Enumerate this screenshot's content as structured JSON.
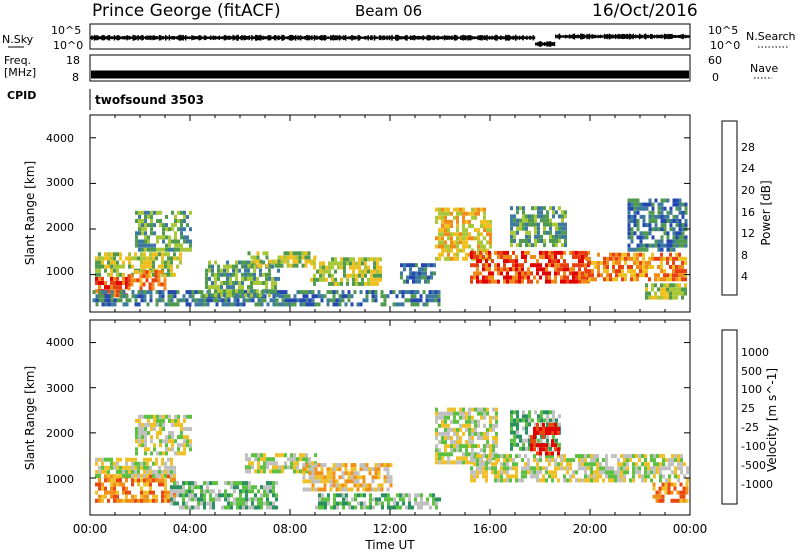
{
  "header": {
    "title": "Prince George (fitACF)",
    "beam": "Beam 06",
    "date": "16/Oct/2016"
  },
  "nsky_panel": {
    "left_label": "N.Sky",
    "right_label": "N.Search",
    "left_ticks": [
      "10^5",
      "10^0"
    ],
    "right_ticks": [
      "10^5",
      "10^0"
    ]
  },
  "freq_panel": {
    "left_label_line1": "Freq.",
    "left_label_line2": "[MHz]",
    "left_ticks": [
      "18",
      "8"
    ],
    "right_label": "Nave",
    "right_ticks": [
      "60",
      "0"
    ]
  },
  "cpid_panel": {
    "label": "CPID",
    "value": "twofsound 3503"
  },
  "x_axis": {
    "label": "Time UT",
    "ticks": [
      "00:00",
      "04:00",
      "08:00",
      "12:00",
      "16:00",
      "20:00",
      "00:00"
    ]
  },
  "power_panel": {
    "ylabel": "Slant Range [km]",
    "yticks": [
      "1000",
      "2000",
      "3000",
      "4000"
    ],
    "colorbar_label": "Power [dB]",
    "colorbar_ticks": [
      "4",
      "8",
      "12",
      "16",
      "20",
      "24",
      "28"
    ],
    "colorbar_colors": [
      "#1010e8",
      "#2448b0",
      "#3e7aa0",
      "#4f9a4f",
      "#a8c838",
      "#f0c020",
      "#f08a18",
      "#e84010",
      "#e00000"
    ]
  },
  "velocity_panel": {
    "ylabel": "Slant Range [km]",
    "yticks": [
      "1000",
      "2000",
      "3000",
      "4000"
    ],
    "colorbar_label": "Velocity [m s^-1]",
    "colorbar_ticks": [
      "1000",
      "500",
      "100",
      "25",
      "-25",
      "-100",
      "-500",
      "-1000"
    ],
    "colorbar_colors": [
      "#1030d0",
      "#2470c0",
      "#2a9060",
      "#5cc040",
      "#c0c0c0",
      "#f0c028",
      "#f09018",
      "#e84810",
      "#e00000"
    ]
  },
  "chart_data": {
    "type": "heatmap",
    "x_range_hours": [
      0,
      24
    ],
    "y_range_km": [
      180,
      4500
    ],
    "power_bands": [
      {
        "t0": 0.2,
        "t1": 1.6,
        "r0": 500,
        "r1": 900,
        "level": 7
      },
      {
        "t0": 0.2,
        "t1": 3.6,
        "r0": 950,
        "r1": 1450,
        "level": 4
      },
      {
        "t0": 1.5,
        "t1": 3.0,
        "r0": 650,
        "r1": 1100,
        "level": 6
      },
      {
        "t0": 1.8,
        "t1": 4.0,
        "r0": 1500,
        "r1": 2400,
        "level": 3
      },
      {
        "t0": 0.1,
        "t1": 14.0,
        "r0": 300,
        "r1": 600,
        "level": 2
      },
      {
        "t0": 4.6,
        "t1": 7.6,
        "r0": 500,
        "r1": 1300,
        "level": 3
      },
      {
        "t0": 6.3,
        "t1": 9.0,
        "r0": 1150,
        "r1": 1500,
        "level": 4
      },
      {
        "t0": 8.8,
        "t1": 11.6,
        "r0": 750,
        "r1": 1300,
        "level": 4
      },
      {
        "t0": 12.4,
        "t1": 13.8,
        "r0": 800,
        "r1": 1200,
        "level": 2
      },
      {
        "t0": 13.8,
        "t1": 16.0,
        "r0": 1300,
        "r1": 2400,
        "level": 5
      },
      {
        "t0": 15.2,
        "t1": 20.0,
        "r0": 800,
        "r1": 1500,
        "level": 7
      },
      {
        "t0": 16.8,
        "t1": 19.0,
        "r0": 1600,
        "r1": 2500,
        "level": 3
      },
      {
        "t0": 19.8,
        "t1": 24.0,
        "r0": 850,
        "r1": 1400,
        "level": 6
      },
      {
        "t0": 22.2,
        "t1": 24.0,
        "r0": 450,
        "r1": 800,
        "level": 4
      },
      {
        "t0": 21.5,
        "t1": 24.0,
        "r0": 1500,
        "r1": 2600,
        "level": 2
      }
    ],
    "velocity_bands": [
      {
        "t0": 0.2,
        "t1": 3.4,
        "r0": 450,
        "r1": 1000,
        "level": 6
      },
      {
        "t0": 0.2,
        "t1": 3.4,
        "r0": 1000,
        "r1": 1450,
        "level": 4
      },
      {
        "t0": 1.8,
        "t1": 4.0,
        "r0": 1500,
        "r1": 2400,
        "level": 4
      },
      {
        "t0": 3.2,
        "t1": 7.5,
        "r0": 300,
        "r1": 900,
        "level": 3
      },
      {
        "t0": 6.2,
        "t1": 9.0,
        "r0": 1100,
        "r1": 1500,
        "level": 4
      },
      {
        "t0": 8.5,
        "t1": 12.0,
        "r0": 700,
        "r1": 1300,
        "level": 5
      },
      {
        "t0": 9.0,
        "t1": 14.0,
        "r0": 300,
        "r1": 600,
        "level": 3
      },
      {
        "t0": 13.8,
        "t1": 16.2,
        "r0": 1300,
        "r1": 2500,
        "level": 4
      },
      {
        "t0": 15.2,
        "t1": 20.2,
        "r0": 900,
        "r1": 1500,
        "level": 4
      },
      {
        "t0": 16.8,
        "t1": 18.8,
        "r0": 1600,
        "r1": 2500,
        "level": 3
      },
      {
        "t0": 17.6,
        "t1": 18.8,
        "r0": 1500,
        "r1": 2200,
        "level": 8
      },
      {
        "t0": 20.0,
        "t1": 24.0,
        "r0": 900,
        "r1": 1500,
        "level": 4
      },
      {
        "t0": 22.5,
        "t1": 24.0,
        "r0": 450,
        "r1": 900,
        "level": 6
      }
    ],
    "nsky_trace": [
      {
        "t0": 0.0,
        "t1": 17.8,
        "level": 0.45
      },
      {
        "t0": 17.8,
        "t1": 18.6,
        "level": 0.2
      },
      {
        "t0": 18.6,
        "t1": 24.0,
        "level": 0.5
      }
    ],
    "freq_mhz": 10.5,
    "nave_range": [
      0,
      60
    ]
  }
}
